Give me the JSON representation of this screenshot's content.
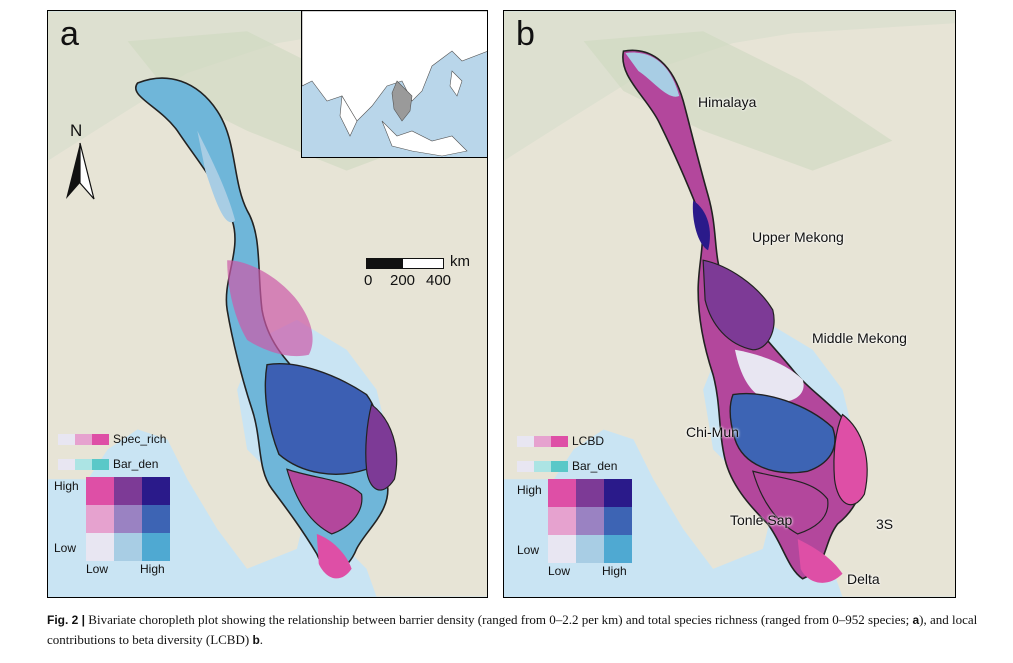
{
  "panel_a": {
    "letter": "a",
    "north_label": "N",
    "scale": {
      "unit": "km",
      "ticks": [
        "0",
        "200",
        "400"
      ]
    },
    "legend": {
      "var1_label": "Spec_rich",
      "var2_label": "Bar_den",
      "high": "High",
      "low": "Low",
      "axis_low": "Low",
      "axis_high": "High"
    }
  },
  "panel_b": {
    "letter": "b",
    "regions": {
      "himalaya": "Himalaya",
      "upper_mekong": "Upper Mekong",
      "middle_mekong": "Middle Mekong",
      "chi_mun": "Chi-Mun",
      "tonle_sap": "Tonle Sap",
      "three_s": "3S",
      "delta": "Delta"
    },
    "legend": {
      "var1_label": "LCBD",
      "var2_label": "Bar_den",
      "high": "High",
      "low": "Low",
      "axis_low": "Low",
      "axis_high": "High"
    }
  },
  "bivariate_colors": {
    "var1_ramp": [
      "#e8e6f2",
      "#e6a2cf",
      "#de4fa6"
    ],
    "var2_ramp": [
      "#e8e6f2",
      "#ace4e4",
      "#5ac8c8"
    ],
    "matrix": [
      [
        "#de4fa6",
        "#7d3a96",
        "#2a1a8a"
      ],
      [
        "#e6a2cf",
        "#9a82c2",
        "#3d64b4"
      ],
      [
        "#e8e6f2",
        "#a8cde4",
        "#4fa9d2"
      ]
    ]
  },
  "caption": {
    "fig_label": "Fig. 2 |",
    "text": " Bivariate choropleth plot showing the relationship between barrier density (ranged from 0–2.2 per km) and total species richness (ranged from 0–952 species; ",
    "a_ref": "a",
    "text2": "), and local contributions to beta diversity (LCBD) ",
    "b_ref": "b",
    "end": "."
  }
}
